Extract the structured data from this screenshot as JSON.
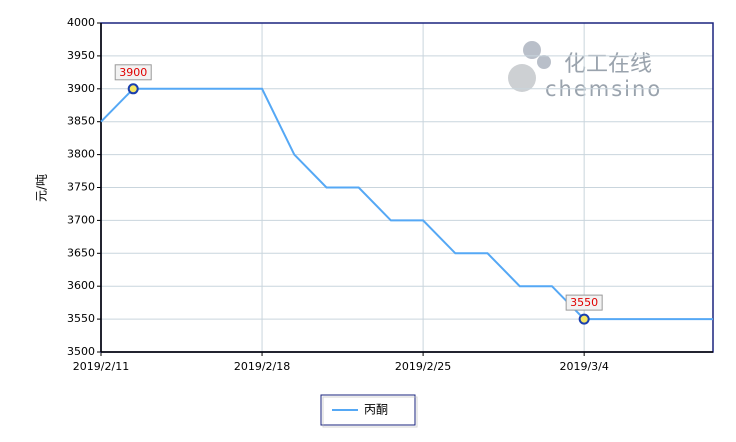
{
  "chart_data": {
    "type": "line",
    "y_label": "元/吨",
    "watermark": [
      "化工在线",
      "chemsino"
    ],
    "categories": [
      "2019/2/11",
      null,
      null,
      null,
      null,
      "2019/2/18",
      null,
      null,
      null,
      null,
      "2019/2/25",
      null,
      null,
      null,
      null,
      "2019/3/4",
      null,
      null,
      null,
      null
    ],
    "series": [
      {
        "name": "丙酮",
        "color": "#55a8f5",
        "values": [
          3850,
          3900,
          3900,
          3900,
          3900,
          3900,
          3800,
          3750,
          3750,
          3700,
          3700,
          3650,
          3650,
          3600,
          3600,
          3550,
          3550,
          3550,
          3550,
          3550
        ]
      }
    ],
    "labeled_points": [
      1,
      15
    ],
    "ylim": [
      3500,
      4000
    ],
    "yticks": [
      3500,
      3550,
      3600,
      3650,
      3700,
      3750,
      3800,
      3850,
      3900,
      3950,
      4000
    ],
    "grid": true
  }
}
